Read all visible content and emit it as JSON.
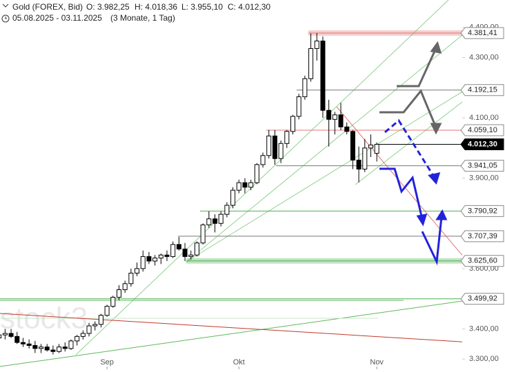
{
  "chart_data": {
    "type": "candlestick",
    "title": "Gold (FOREX, Bid)",
    "ohlc_header": [
      "O: 3.982,25",
      "H: 4.018,36",
      "L: 3.955,10",
      "C: 4.012,30"
    ],
    "subtitle": "05.08.2025 - 03.11.2025",
    "period": "(3 Monate, 1 Tag)",
    "watermark": "stock3",
    "categories": [
      null,
      null,
      null,
      null,
      null,
      null,
      null,
      null,
      null,
      null,
      null,
      null,
      null,
      null,
      null,
      null,
      null,
      null,
      null,
      "Sep",
      null,
      null,
      null,
      null,
      null,
      null,
      null,
      null,
      null,
      null,
      null,
      null,
      null,
      null,
      null,
      null,
      null,
      null,
      null,
      null,
      null,
      "Okt",
      null,
      null,
      null,
      null,
      null,
      null,
      null,
      null,
      null,
      null,
      null,
      null,
      null,
      null,
      null,
      null,
      null,
      null,
      null,
      null,
      null,
      null,
      "Nov"
    ],
    "ohlc": [
      [
        3380,
        3390,
        3350,
        3370
      ],
      [
        3370,
        3385,
        3355,
        3380
      ],
      [
        3380,
        3400,
        3365,
        3385
      ],
      [
        3385,
        3400,
        3370,
        3375
      ],
      [
        3375,
        3390,
        3350,
        3355
      ],
      [
        3355,
        3370,
        3340,
        3350
      ],
      [
        3350,
        3365,
        3335,
        3345
      ],
      [
        3345,
        3360,
        3320,
        3335
      ],
      [
        3335,
        3350,
        3320,
        3340
      ],
      [
        3340,
        3350,
        3325,
        3330
      ],
      [
        3330,
        3345,
        3315,
        3325
      ],
      [
        3325,
        3350,
        3320,
        3340
      ],
      [
        3340,
        3355,
        3325,
        3335
      ],
      [
        3335,
        3365,
        3330,
        3360
      ],
      [
        3360,
        3380,
        3345,
        3375
      ],
      [
        3375,
        3395,
        3365,
        3385
      ],
      [
        3385,
        3420,
        3375,
        3410
      ],
      [
        3410,
        3425,
        3395,
        3415
      ],
      [
        3415,
        3450,
        3405,
        3445
      ],
      [
        3445,
        3480,
        3440,
        3475
      ],
      [
        3475,
        3510,
        3470,
        3505
      ],
      [
        3505,
        3545,
        3495,
        3530
      ],
      [
        3530,
        3560,
        3520,
        3550
      ],
      [
        3550,
        3600,
        3540,
        3585
      ],
      [
        3585,
        3620,
        3575,
        3600
      ],
      [
        3600,
        3660,
        3590,
        3640
      ],
      [
        3640,
        3655,
        3615,
        3625
      ],
      [
        3625,
        3645,
        3610,
        3635
      ],
      [
        3635,
        3650,
        3615,
        3645
      ],
      [
        3645,
        3660,
        3625,
        3640
      ],
      [
        3640,
        3690,
        3635,
        3680
      ],
      [
        3680,
        3705,
        3660,
        3665
      ],
      [
        3665,
        3685,
        3625,
        3640
      ],
      [
        3640,
        3660,
        3630,
        3645
      ],
      [
        3645,
        3690,
        3640,
        3685
      ],
      [
        3685,
        3750,
        3680,
        3745
      ],
      [
        3745,
        3790,
        3735,
        3765
      ],
      [
        3765,
        3780,
        3720,
        3750
      ],
      [
        3750,
        3790,
        3740,
        3780
      ],
      [
        3780,
        3820,
        3770,
        3810
      ],
      [
        3810,
        3870,
        3800,
        3860
      ],
      [
        3860,
        3895,
        3850,
        3885
      ],
      [
        3885,
        3900,
        3850,
        3870
      ],
      [
        3870,
        3895,
        3860,
        3885
      ],
      [
        3885,
        3950,
        3880,
        3945
      ],
      [
        3945,
        3985,
        3935,
        3975
      ],
      [
        3975,
        4060,
        3965,
        4040
      ],
      [
        4040,
        4060,
        3945,
        3965
      ],
      [
        3965,
        4025,
        3950,
        4015
      ],
      [
        4015,
        4060,
        4000,
        4055
      ],
      [
        4055,
        4110,
        4045,
        4105
      ],
      [
        4105,
        4180,
        4095,
        4170
      ],
      [
        4170,
        4240,
        4160,
        4230
      ],
      [
        4230,
        4380,
        4220,
        4330
      ],
      [
        4330,
        4381.41,
        4290,
        4355
      ],
      [
        4355,
        4370,
        4100,
        4125
      ],
      [
        4125,
        4160,
        4005,
        4095
      ],
      [
        4095,
        4120,
        4045,
        4110
      ],
      [
        4110,
        4150,
        4060,
        4070
      ],
      [
        4070,
        4085,
        4045,
        4055
      ],
      [
        4055,
        4060,
        3930,
        3960
      ],
      [
        3960,
        4005,
        3886,
        3930
      ],
      [
        3930,
        4030,
        3920,
        4000
      ],
      [
        4000,
        4045,
        3970,
        4010
      ],
      [
        3982.25,
        4018.36,
        3955.1,
        4012.3
      ]
    ],
    "ylim": [
      3257,
      4491
    ],
    "yticks": [
      {
        "value": 4400,
        "label": "4.400,00"
      },
      {
        "value": 4300,
        "label": "4.300,00"
      },
      {
        "value": 4100,
        "label": "4.100,00"
      },
      {
        "value": 3900,
        "label": "3.900,00"
      },
      {
        "value": 3600,
        "label": "3.600,00"
      },
      {
        "value": 3400,
        "label": "3.400,00"
      },
      {
        "value": 3300,
        "label": "3.300,00"
      }
    ],
    "levels": [
      {
        "value": 4381.41,
        "label": "4.381,41",
        "color": "#e57373"
      },
      {
        "value": 4192.15,
        "label": "4.192,15",
        "color": "#777777"
      },
      {
        "value": 4059.1,
        "label": "4.059,10",
        "color": "#e57373"
      },
      {
        "value": 4012.3,
        "label": "4.012,30",
        "color": "#000000"
      },
      {
        "value": 3941.05,
        "label": "3.941,05",
        "color": "#777777"
      },
      {
        "value": 3790.92,
        "label": "3.790,92",
        "color": "#4caf50"
      },
      {
        "value": 3707.39,
        "label": "3.707,39",
        "color": "#777777"
      },
      {
        "value": 3625.6,
        "label": "3.625,60",
        "color": "#4caf50"
      },
      {
        "value": 3499.92,
        "label": "3.499,92",
        "color": "#4caf50"
      }
    ]
  }
}
